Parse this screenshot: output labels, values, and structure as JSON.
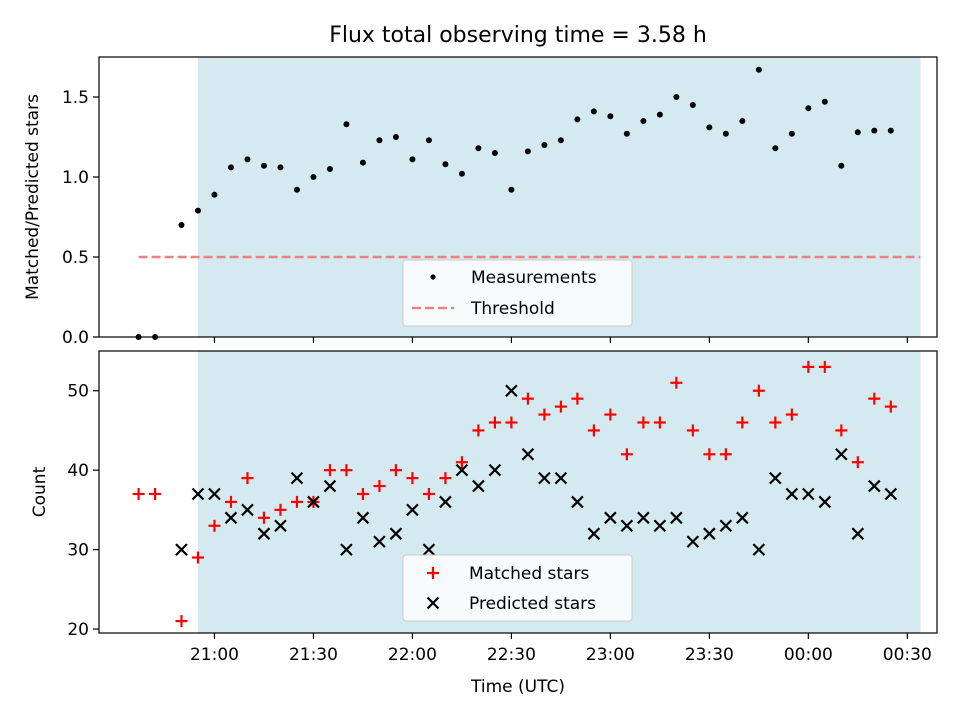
{
  "title": "Flux total observing time = 3.58 h",
  "colors": {
    "shade": "#d4eaf0",
    "measurement": "#000000",
    "threshold": "#f08080",
    "matched": "#ff0000",
    "predicted": "#000000"
  },
  "chart_data": [
    {
      "type": "scatter",
      "ylabel": "Matched/Predicted stars",
      "ylim": [
        0,
        1.75
      ],
      "yticks": [
        0,
        0.5,
        1.0,
        1.5
      ],
      "ytick_labels": [
        "0.0",
        "0.5",
        "1.0",
        "1.5"
      ],
      "xlim_min": [
        1225,
        1479
      ],
      "shaded_range_min": [
        1255,
        1474
      ],
      "legend": {
        "placement": "bottom-center",
        "entries": [
          "Measurements",
          "Threshold"
        ]
      },
      "threshold": {
        "label": "Threshold",
        "value": 0.5,
        "x_range_min": [
          1237,
          1474
        ]
      },
      "series": [
        {
          "name": "Measurements",
          "x_min": [
            1237,
            1242,
            1250,
            1255,
            1260,
            1265,
            1270,
            1275,
            1280,
            1285,
            1290,
            1295,
            1300,
            1305,
            1310,
            1315,
            1320,
            1325,
            1330,
            1335,
            1340,
            1345,
            1350,
            1355,
            1360,
            1365,
            1370,
            1375,
            1380,
            1385,
            1390,
            1395,
            1400,
            1405,
            1410,
            1415,
            1420,
            1425,
            1430,
            1435,
            1440,
            1445,
            1450,
            1455,
            1460,
            1465,
            1470,
            1474
          ],
          "values": [
            0.0,
            0.0,
            0.7,
            0.79,
            0.89,
            1.06,
            1.11,
            1.07,
            1.06,
            0.92,
            1.0,
            1.05,
            1.33,
            1.09,
            1.23,
            1.25,
            1.11,
            1.23,
            1.08,
            1.02,
            1.18,
            1.15,
            0.92,
            1.16,
            1.2,
            1.23,
            1.36,
            1.41,
            1.38,
            1.27,
            1.35,
            1.39,
            1.5,
            1.45,
            1.31,
            1.27,
            1.35,
            1.67,
            1.18,
            1.27,
            1.43,
            1.47,
            1.07,
            1.28,
            1.29,
            1.29,
            null,
            null
          ]
        }
      ]
    },
    {
      "type": "scatter",
      "ylabel": "Count",
      "xlabel": "Time (UTC)",
      "ylim": [
        19.5,
        55
      ],
      "yticks": [
        20,
        30,
        40,
        50
      ],
      "ytick_labels": [
        "20",
        "30",
        "40",
        "50"
      ],
      "xlim_min": [
        1225,
        1479
      ],
      "xticks_min": [
        1260,
        1290,
        1320,
        1350,
        1380,
        1410,
        1440,
        1470
      ],
      "xtick_labels": [
        "21:00",
        "21:30",
        "22:00",
        "22:30",
        "23:00",
        "23:30",
        "00:00",
        "00:30"
      ],
      "shaded_range_min": [
        1255,
        1474
      ],
      "legend": {
        "placement": "bottom-center",
        "entries": [
          "Matched stars",
          "Predicted stars"
        ]
      },
      "series": [
        {
          "name": "Matched stars",
          "x_min": [
            1237,
            1242,
            1250,
            1255,
            1260,
            1265,
            1270,
            1275,
            1280,
            1285,
            1290,
            1295,
            1300,
            1305,
            1310,
            1315,
            1320,
            1325,
            1330,
            1335,
            1340,
            1345,
            1350,
            1355,
            1360,
            1365,
            1370,
            1375,
            1380,
            1385,
            1390,
            1395,
            1400,
            1405,
            1410,
            1415,
            1420,
            1425,
            1430,
            1435,
            1440,
            1445,
            1450,
            1455,
            1460,
            1465,
            1470,
            1474
          ],
          "values": [
            37,
            37,
            21,
            29,
            33,
            36,
            39,
            34,
            35,
            36,
            36,
            40,
            40,
            37,
            38,
            40,
            39,
            37,
            39,
            41,
            45,
            46,
            46,
            49,
            47,
            48,
            49,
            45,
            47,
            42,
            46,
            46,
            51,
            45,
            42,
            42,
            46,
            50,
            46,
            47,
            53,
            53,
            45,
            41,
            49,
            48,
            null,
            null
          ]
        },
        {
          "name": "Predicted stars",
          "x_min": [
            1250,
            1255,
            1260,
            1265,
            1270,
            1275,
            1280,
            1285,
            1290,
            1295,
            1300,
            1305,
            1310,
            1315,
            1320,
            1325,
            1330,
            1335,
            1340,
            1345,
            1350,
            1355,
            1360,
            1365,
            1370,
            1375,
            1380,
            1385,
            1390,
            1395,
            1400,
            1405,
            1410,
            1415,
            1420,
            1425,
            1430,
            1435,
            1440,
            1445,
            1450,
            1455,
            1460,
            1465
          ],
          "values": [
            30,
            37,
            37,
            34,
            35,
            32,
            33,
            39,
            36,
            38,
            30,
            34,
            31,
            32,
            35,
            30,
            36,
            40,
            38,
            40,
            50,
            42,
            39,
            39,
            36,
            32,
            34,
            33,
            34,
            33,
            34,
            31,
            32,
            33,
            34,
            30,
            39,
            37,
            37,
            36,
            42,
            32,
            38,
            37
          ]
        }
      ]
    }
  ]
}
